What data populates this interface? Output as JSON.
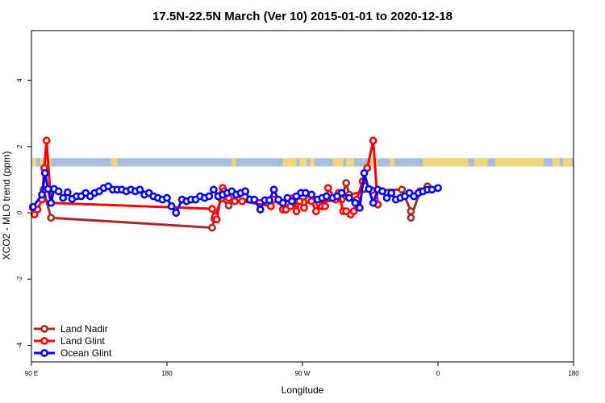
{
  "chart_data": {
    "type": "line",
    "title": "17.5N-22.5N March (Ver 10)   2015-01-01 to 2020-12-18",
    "xlabel": "Longitude",
    "ylabel": "XCO2 - MLO trend (ppm)",
    "xlim": [
      90,
      450
    ],
    "ylim": [
      -4.5,
      5.5
    ],
    "x_ticks": [
      {
        "value": 90,
        "label": "90 E"
      },
      {
        "value": 180,
        "label": "180"
      },
      {
        "value": 270,
        "label": "90 W"
      },
      {
        "value": 360,
        "label": "0"
      },
      {
        "value": 450,
        "label": "180"
      }
    ],
    "y_ticks": [
      {
        "value": -4,
        "label": "-4"
      },
      {
        "value": -2,
        "label": "-2"
      },
      {
        "value": 0,
        "label": "0"
      },
      {
        "value": 2,
        "label": "2"
      },
      {
        "value": 4,
        "label": "4"
      }
    ],
    "land_mask_band": {
      "y_range": [
        1.4,
        1.65
      ],
      "ocean_color": "#a8bedf",
      "land_color": "#f4d47a",
      "land_spans": [
        [
          90,
          93
        ],
        [
          96,
          103
        ],
        [
          143,
          147
        ],
        [
          223,
          226
        ],
        [
          257,
          266
        ],
        [
          268,
          273
        ],
        [
          275,
          278
        ],
        [
          290,
          297
        ],
        [
          299,
          304
        ],
        [
          315,
          320
        ],
        [
          328,
          331
        ],
        [
          350,
          380
        ],
        [
          384,
          393
        ],
        [
          398,
          430
        ],
        [
          436,
          441
        ],
        [
          443,
          449
        ]
      ]
    },
    "legend_position": "bottom-left",
    "series": [
      {
        "name": "Land Nadir",
        "color": "#a52a2a",
        "points": [
          [
            98,
            0.7
          ],
          [
            103,
            -0.15
          ],
          [
            210,
            -0.45
          ],
          [
            211.5,
            -0.18
          ],
          [
            216,
            0.43
          ],
          [
            221,
            0.22
          ],
          [
            227,
            0.4
          ],
          [
            265,
            0.35
          ],
          [
            275,
            0.45
          ],
          [
            282,
            0.33
          ],
          [
            296,
            0.4
          ],
          [
            299,
            0.9
          ],
          [
            301,
            0.55
          ],
          [
            316,
            0.68
          ],
          [
            336,
            0.7
          ],
          [
            342,
            0.05
          ],
          [
            342,
            -0.15
          ],
          [
            348,
            0.65
          ],
          [
            353,
            0.8
          ]
        ]
      },
      {
        "name": "Land Glint",
        "color": "#ff0000",
        "points": [
          [
            91,
            0.15
          ],
          [
            92,
            -0.05
          ],
          [
            94,
            0.1
          ],
          [
            97,
            0.4
          ],
          [
            98.5,
            1.35
          ],
          [
            100,
            2.18
          ],
          [
            103,
            0.3
          ],
          [
            210,
            0.12
          ],
          [
            212,
            -0.1
          ],
          [
            213,
            -0.2
          ],
          [
            216,
            0.55
          ],
          [
            217,
            0.75
          ],
          [
            218,
            0.65
          ],
          [
            221,
            0.45
          ],
          [
            225,
            0.35
          ],
          [
            230,
            0.35
          ],
          [
            249,
            0.2
          ],
          [
            251,
            0.4
          ],
          [
            255,
            0.35
          ],
          [
            257,
            0.1
          ],
          [
            259,
            0.1
          ],
          [
            262,
            0.2
          ],
          [
            264,
            0.45
          ],
          [
            266,
            0.05
          ],
          [
            268,
            0.35
          ],
          [
            271,
            0.15
          ],
          [
            274,
            0.4
          ],
          [
            276,
            0.35
          ],
          [
            279,
            0.05
          ],
          [
            281,
            0.3
          ],
          [
            283,
            0.2
          ],
          [
            285,
            0.2
          ],
          [
            287,
            0.75
          ],
          [
            292,
            0.4
          ],
          [
            294,
            0.6
          ],
          [
            297,
            0.05
          ],
          [
            299,
            0.05
          ],
          [
            302,
            -0.05
          ],
          [
            304,
            0.05
          ],
          [
            306,
            0.4
          ],
          [
            310,
            0.95
          ],
          [
            313,
            1.35
          ],
          [
            317,
            2.18
          ],
          [
            320,
            0.25
          ]
        ]
      },
      {
        "name": "Ocean Glint",
        "color": "#0000ff",
        "points": [
          [
            91,
            0.18
          ],
          [
            97,
            0.55
          ],
          [
            99,
            1.2
          ],
          [
            101,
            0.72
          ],
          [
            103,
            0.3
          ],
          [
            105,
            0.72
          ],
          [
            108,
            0.65
          ],
          [
            111,
            0.45
          ],
          [
            114,
            0.62
          ],
          [
            117,
            0.42
          ],
          [
            120,
            0.5
          ],
          [
            123,
            0.5
          ],
          [
            126,
            0.6
          ],
          [
            129,
            0.5
          ],
          [
            132,
            0.6
          ],
          [
            135,
            0.65
          ],
          [
            138,
            0.75
          ],
          [
            141,
            0.8
          ],
          [
            144,
            0.7
          ],
          [
            147,
            0.7
          ],
          [
            150,
            0.7
          ],
          [
            153,
            0.65
          ],
          [
            156,
            0.7
          ],
          [
            159,
            0.65
          ],
          [
            162,
            0.7
          ],
          [
            165,
            0.55
          ],
          [
            168,
            0.6
          ],
          [
            171,
            0.5
          ],
          [
            174,
            0.45
          ],
          [
            177,
            0.4
          ],
          [
            180,
            0.45
          ],
          [
            183,
            0.2
          ],
          [
            186,
            0.0
          ],
          [
            190,
            0.4
          ],
          [
            193,
            0.35
          ],
          [
            196,
            0.4
          ],
          [
            199,
            0.4
          ],
          [
            202,
            0.5
          ],
          [
            205,
            0.45
          ],
          [
            208,
            0.5
          ],
          [
            211,
            0.7
          ],
          [
            214,
            0.5
          ],
          [
            217,
            0.55
          ],
          [
            220,
            0.6
          ],
          [
            223,
            0.65
          ],
          [
            226,
            0.55
          ],
          [
            229,
            0.6
          ],
          [
            232,
            0.65
          ],
          [
            235,
            0.4
          ],
          [
            238,
            0.4
          ],
          [
            242,
            0.1
          ],
          [
            245,
            0.38
          ],
          [
            248,
            0.38
          ],
          [
            251,
            0.7
          ],
          [
            254,
            0.4
          ],
          [
            257,
            0.3
          ],
          [
            260,
            0.45
          ],
          [
            263,
            0.35
          ],
          [
            266,
            0.5
          ],
          [
            269,
            0.6
          ],
          [
            272,
            0.6
          ],
          [
            276,
            0.55
          ],
          [
            280,
            0.4
          ],
          [
            283,
            0.45
          ],
          [
            286,
            0.5
          ],
          [
            290,
            0.45
          ],
          [
            293,
            0.5
          ],
          [
            296,
            0.6
          ],
          [
            301,
            0.45
          ],
          [
            305,
            0.3
          ],
          [
            308,
            0.15
          ],
          [
            311,
            1.2
          ],
          [
            314,
            0.72
          ],
          [
            317,
            0.3
          ],
          [
            320,
            0.7
          ],
          [
            323,
            0.65
          ],
          [
            326,
            0.45
          ],
          [
            329,
            0.6
          ],
          [
            332,
            0.4
          ],
          [
            335,
            0.45
          ],
          [
            338,
            0.5
          ],
          [
            341,
            0.6
          ],
          [
            344,
            0.5
          ],
          [
            347,
            0.6
          ],
          [
            350,
            0.65
          ],
          [
            353,
            0.7
          ],
          [
            356,
            0.7
          ],
          [
            360,
            0.75
          ]
        ]
      }
    ]
  }
}
